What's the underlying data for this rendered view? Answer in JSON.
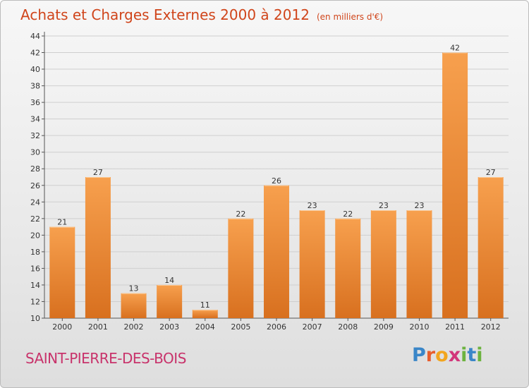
{
  "header": {
    "title": "Achats et Charges Externes 2000 à 2012",
    "unit": "(en milliers d'€)"
  },
  "footer": {
    "place": "SAINT-PIERRE-DES-BOIS",
    "logo_text": "Proxiti",
    "logo_letters": [
      {
        "ch": "P",
        "color": "#3a86c8"
      },
      {
        "ch": "r",
        "color": "#e85d2c"
      },
      {
        "ch": "o",
        "color": "#f2a51e"
      },
      {
        "ch": "x",
        "color": "#d2357a"
      },
      {
        "ch": "i",
        "color": "#6cb33f"
      },
      {
        "ch": "t",
        "color": "#3a86c8"
      },
      {
        "ch": "i",
        "color": "#6cb33f"
      }
    ]
  },
  "colors": {
    "title": "#d0451b",
    "place": "#c8336b",
    "bar_light": "#f7a04e",
    "bar_dark": "#d8701f",
    "grid": "#cfcfcf"
  },
  "chart_data": {
    "type": "bar",
    "title": "Achats et Charges Externes 2000 à 2012",
    "subtitle": "(en milliers d'€)",
    "xlabel": "",
    "ylabel": "",
    "categories": [
      "2000",
      "2001",
      "2002",
      "2003",
      "2004",
      "2005",
      "2006",
      "2007",
      "2008",
      "2009",
      "2010",
      "2011",
      "2012"
    ],
    "values": [
      21,
      27,
      13,
      14,
      11,
      22,
      26,
      23,
      22,
      23,
      23,
      42,
      27
    ],
    "ylim": [
      10,
      44
    ],
    "yticks": [
      10,
      12,
      14,
      16,
      18,
      20,
      22,
      24,
      26,
      28,
      30,
      32,
      34,
      36,
      38,
      40,
      42,
      44
    ],
    "grid": true,
    "legend": "none"
  }
}
